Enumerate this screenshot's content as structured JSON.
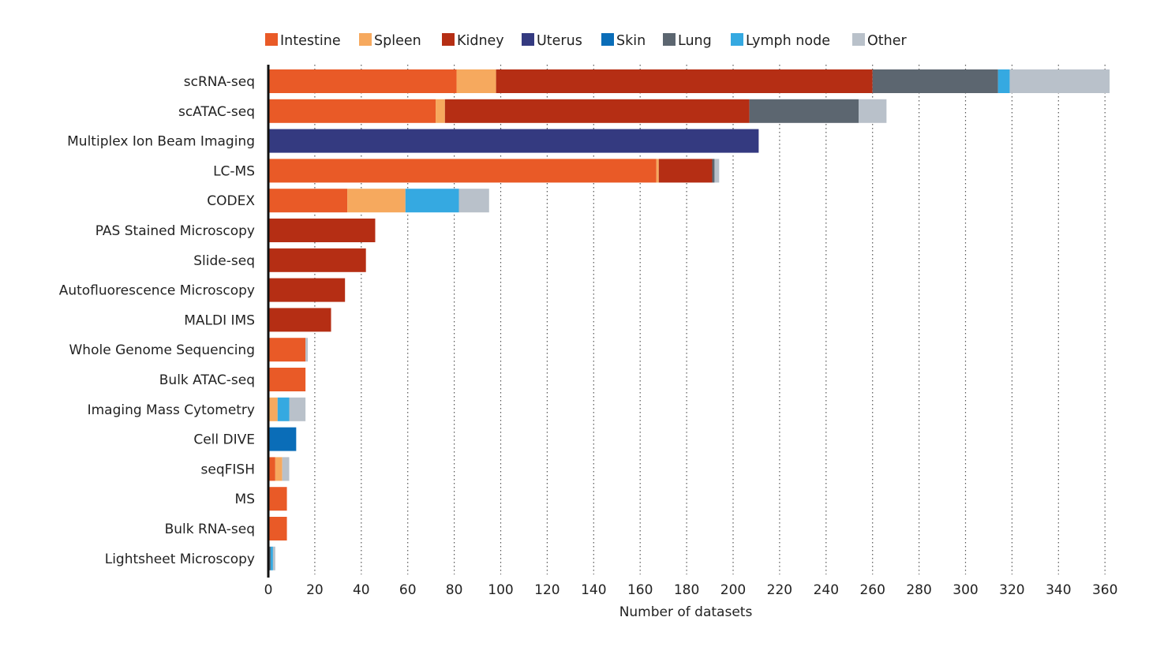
{
  "chart_data": {
    "type": "bar",
    "orientation": "horizontal",
    "stacked": true,
    "title": "",
    "xlabel": "Number of datasets",
    "ylabel": "",
    "xlim": [
      0,
      360
    ],
    "xticks": [
      0,
      20,
      40,
      60,
      80,
      100,
      120,
      140,
      160,
      180,
      200,
      220,
      240,
      260,
      280,
      300,
      320,
      340,
      360
    ],
    "grid": "vertical dotted",
    "legend": "top",
    "categories": [
      "scRNA-seq",
      "scATAC-seq",
      "Multiplex Ion Beam Imaging",
      "LC-MS",
      "CODEX",
      "PAS Stained Microscopy",
      "Slide-seq",
      "Autofluorescence Microscopy",
      "MALDI IMS",
      "Whole Genome Sequencing",
      "Bulk ATAC-seq",
      "Imaging Mass Cytometry",
      "Cell DIVE",
      "seqFISH",
      "MS",
      "Bulk RNA-seq",
      "Lightsheet Microscopy"
    ],
    "series": [
      {
        "name": "Intestine",
        "color": "#E95A27",
        "values": [
          81,
          72,
          0,
          167,
          34,
          0,
          0,
          0,
          0,
          16,
          16,
          0,
          0,
          3,
          8,
          8,
          0
        ]
      },
      {
        "name": "Spleen",
        "color": "#F6A95E",
        "values": [
          17,
          4,
          0,
          1,
          25,
          0,
          0,
          0,
          0,
          0,
          0,
          4,
          0,
          3,
          0,
          0,
          0
        ]
      },
      {
        "name": "Kidney",
        "color": "#B52E14",
        "values": [
          162,
          131,
          0,
          23,
          0,
          46,
          42,
          33,
          27,
          0,
          0,
          0,
          0,
          0,
          0,
          0,
          0
        ]
      },
      {
        "name": "Uterus",
        "color": "#343A80",
        "values": [
          0,
          0,
          211,
          0,
          0,
          0,
          0,
          0,
          0,
          0,
          0,
          0,
          0,
          0,
          0,
          0,
          0
        ]
      },
      {
        "name": "Skin",
        "color": "#0A6DB8",
        "values": [
          0,
          0,
          0,
          0,
          0,
          0,
          0,
          0,
          0,
          0,
          0,
          0,
          12,
          0,
          0,
          0,
          0
        ]
      },
      {
        "name": "Lung",
        "color": "#5C6670",
        "values": [
          54,
          47,
          0,
          1,
          0,
          0,
          0,
          0,
          0,
          0,
          0,
          0,
          0,
          0,
          0,
          0,
          1
        ]
      },
      {
        "name": "Lymph node",
        "color": "#35A9E1",
        "values": [
          5,
          0,
          0,
          0,
          23,
          0,
          0,
          0,
          0,
          0,
          0,
          5,
          0,
          0,
          0,
          0,
          1
        ]
      },
      {
        "name": "Other",
        "color": "#B9C1CA",
        "values": [
          43,
          12,
          0,
          2,
          13,
          0,
          0,
          0,
          0,
          1,
          0,
          7,
          0,
          3,
          0,
          0,
          1
        ]
      }
    ]
  }
}
